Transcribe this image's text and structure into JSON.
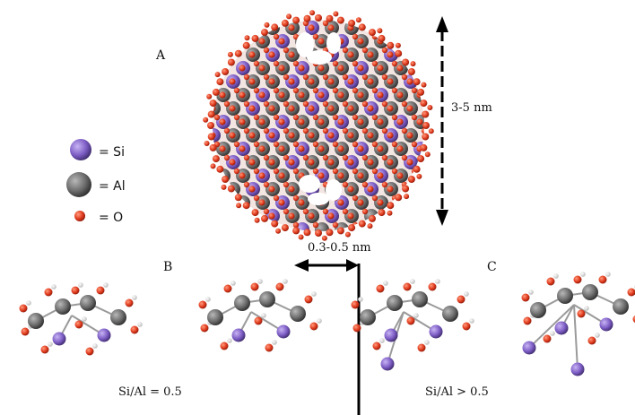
{
  "labels": {
    "panel_a": "A",
    "panel_b": "B",
    "panel_c": "C",
    "size_vertical": "3-5 nm",
    "size_horizontal": "0.3-0.5 nm",
    "ratio_b": "Si/Al = 0.5",
    "ratio_c": "Si/Al > 0.5"
  },
  "legend": [
    {
      "symbol": "= Si",
      "color": "#7c5cc4"
    },
    {
      "symbol": "= Al",
      "color": "#6b6b6b"
    },
    {
      "symbol": "= O",
      "color": "#e03a1e"
    }
  ],
  "colors": {
    "si": "#7c5cc4",
    "al": "#6b6b6b",
    "o": "#e03a1e",
    "h": "#e8e8e8",
    "arrow": "#000000"
  }
}
